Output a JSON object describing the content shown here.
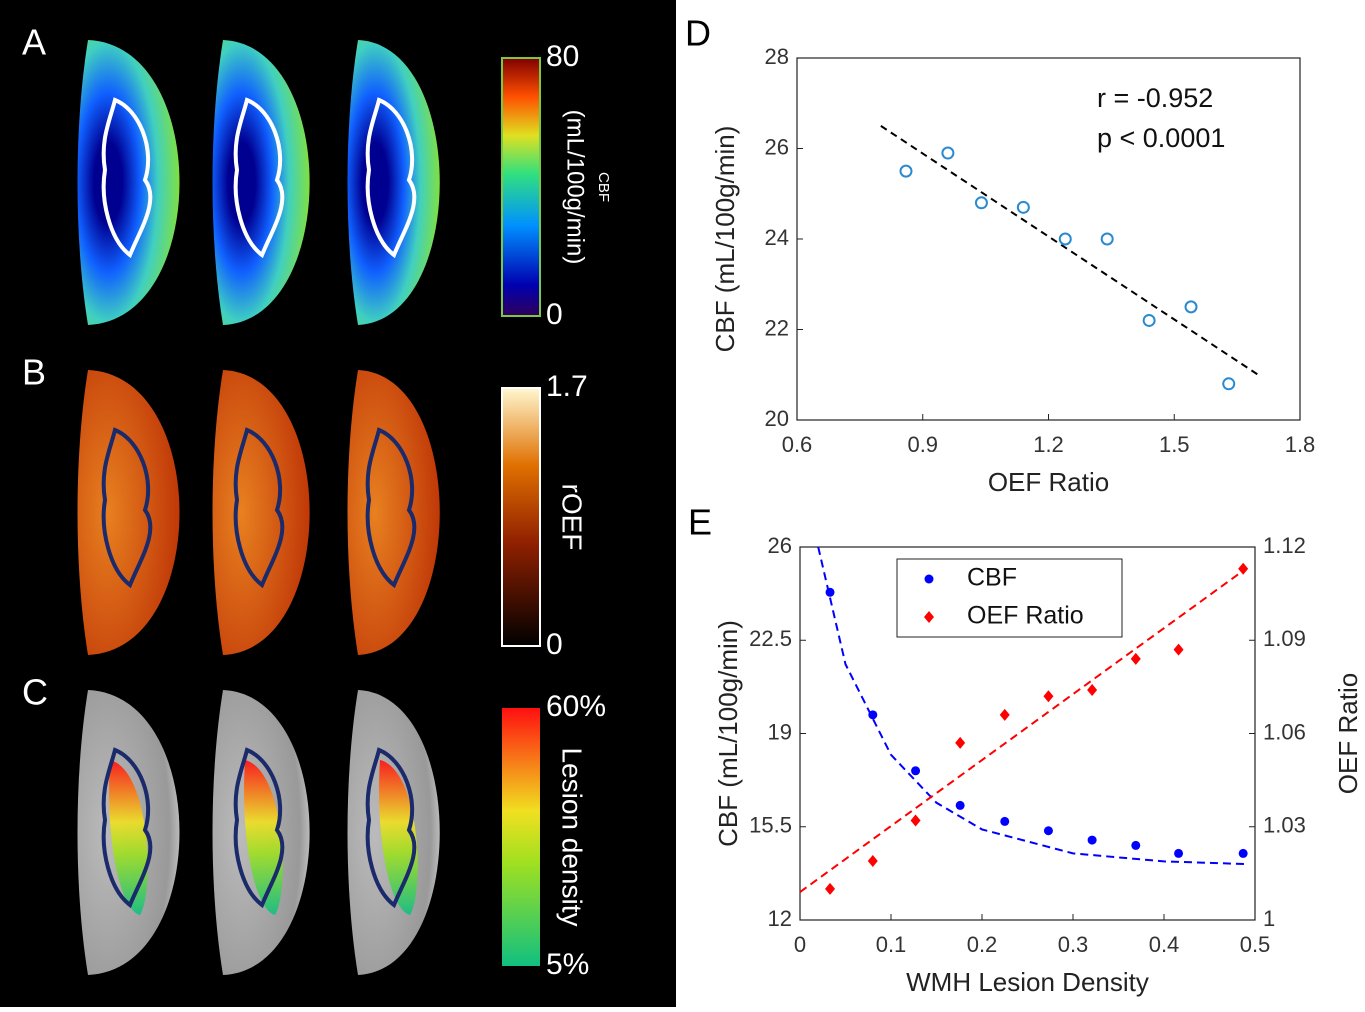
{
  "panels": [
    {
      "label": "A",
      "colorbar": {
        "max": "80",
        "unit": "(mL/100g/min)",
        "name": "CBF",
        "min": "0"
      }
    },
    {
      "label": "B",
      "colorbar": {
        "max": "1.7",
        "name": "rOEF",
        "min": "0"
      }
    },
    {
      "label": "C",
      "colorbar": {
        "max": "60%",
        "name": "Lesion density",
        "min": "5%"
      }
    }
  ],
  "chart_data": [
    {
      "type": "scatter",
      "panel_label": "D",
      "xlabel": "OEF Ratio",
      "ylabel": "CBF (mL/100g/min)",
      "annotations": [
        "r = -0.952",
        "p < 0.0001"
      ],
      "xlim": [
        0.6,
        1.8
      ],
      "xticks": [
        0.6,
        0.9,
        1.2,
        1.5,
        1.8
      ],
      "ylim": [
        20,
        28
      ],
      "yticks": [
        20,
        22,
        24,
        26,
        28
      ],
      "series": [
        {
          "color": "#2a8ad0",
          "x": [
            0.86,
            0.96,
            1.04,
            1.14,
            1.24,
            1.34,
            1.44,
            1.54,
            1.63
          ],
          "y": [
            25.5,
            25.9,
            24.8,
            24.7,
            24.0,
            24.0,
            22.2,
            22.5,
            20.8
          ]
        }
      ],
      "fit": {
        "color": "#000000",
        "x": [
          0.8,
          1.7
        ],
        "y": [
          26.5,
          21.0
        ]
      }
    },
    {
      "type": "dual_axis_scatter",
      "panel_label": "E",
      "xlabel": "WMH Lesion Density",
      "ylabel": "CBF (mL/100g/min)",
      "y2label": "OEF Ratio",
      "xlim": [
        0,
        0.5
      ],
      "xticks": [
        0,
        0.1,
        0.2,
        0.3,
        0.4,
        0.5
      ],
      "ylim": [
        12,
        26
      ],
      "yticks": [
        12,
        15.5,
        19,
        22.5,
        26
      ],
      "y2lim": [
        1,
        1.12
      ],
      "y2ticks": [
        1,
        1.03,
        1.06,
        1.09,
        1.12
      ],
      "legend": "upper center",
      "x": [
        0.033,
        0.08,
        0.127,
        0.176,
        0.225,
        0.273,
        0.321,
        0.369,
        0.416,
        0.487
      ],
      "series": [
        {
          "name": "CBF",
          "color": "#0000ff",
          "marker": "circle",
          "values": [
            24.3,
            19.7,
            17.6,
            16.3,
            15.7,
            15.35,
            15.0,
            14.8,
            14.5,
            14.5
          ]
        },
        {
          "name": "OEF Ratio",
          "color": "#ff0000",
          "marker": "diamond",
          "axis": "y2",
          "values": [
            1.01,
            1.019,
            1.032,
            1.057,
            1.066,
            1.072,
            1.074,
            1.084,
            1.087,
            1.113
          ]
        }
      ],
      "fits": [
        {
          "color": "#0000ff",
          "x": [
            0.02,
            0.05,
            0.1,
            0.15,
            0.2,
            0.3,
            0.4,
            0.49
          ],
          "y": [
            26,
            21.6,
            18.2,
            16.4,
            15.4,
            14.5,
            14.2,
            14.1
          ]
        },
        {
          "color": "#ff0000",
          "axis": "y2",
          "x": [
            0,
            0.49
          ],
          "y": [
            1.009,
            1.113
          ]
        }
      ]
    }
  ]
}
